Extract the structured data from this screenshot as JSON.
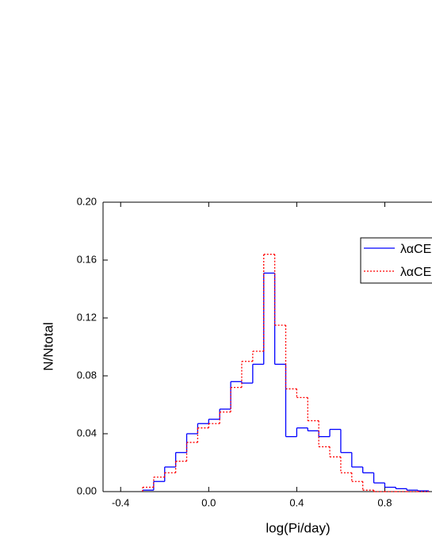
{
  "chart_data": {
    "type": "histogram-step",
    "xlabel": "log(Pi/day)",
    "ylabel": "N/Ntotal",
    "bins": [
      -0.3,
      -0.25,
      -0.2,
      -0.15,
      -0.1,
      -0.05,
      0.0,
      0.05,
      0.1,
      0.15,
      0.2,
      0.25,
      0.3,
      0.35,
      0.4,
      0.45,
      0.5,
      0.55,
      0.6,
      0.65,
      0.7,
      0.75,
      0.8,
      0.85,
      0.9,
      0.95,
      1.0
    ],
    "series": [
      {
        "name": "λαCE=",
        "color": "#0000ff",
        "dash": false,
        "values": [
          0.001,
          0.007,
          0.017,
          0.027,
          0.04,
          0.047,
          0.05,
          0.057,
          0.076,
          0.075,
          0.088,
          0.151,
          0.088,
          0.038,
          0.044,
          0.042,
          0.038,
          0.043,
          0.027,
          0.017,
          0.013,
          0.006,
          0.003,
          0.002,
          0.001,
          0.0005
        ]
      },
      {
        "name": "λαCE=",
        "color": "#ff0000",
        "dash": true,
        "values": [
          0.003,
          0.01,
          0.013,
          0.021,
          0.034,
          0.044,
          0.047,
          0.055,
          0.072,
          0.09,
          0.097,
          0.164,
          0.115,
          0.071,
          0.065,
          0.049,
          0.031,
          0.024,
          0.013,
          0.007,
          0.001,
          0,
          0,
          0,
          0,
          0
        ]
      }
    ],
    "xlim": [
      -0.48,
      1.0
    ],
    "ylim": [
      0,
      0.2
    ],
    "xticks": [
      -0.4,
      {
        "value": 0,
        "label": "0.0"
      },
      0.4,
      0.8
    ],
    "yticks": [
      {
        "value": 0,
        "label": "0.00"
      },
      0.04,
      0.08,
      0.12,
      0.16,
      {
        "value": 0.2,
        "label": "0.20"
      }
    ],
    "legend": "upper right"
  }
}
